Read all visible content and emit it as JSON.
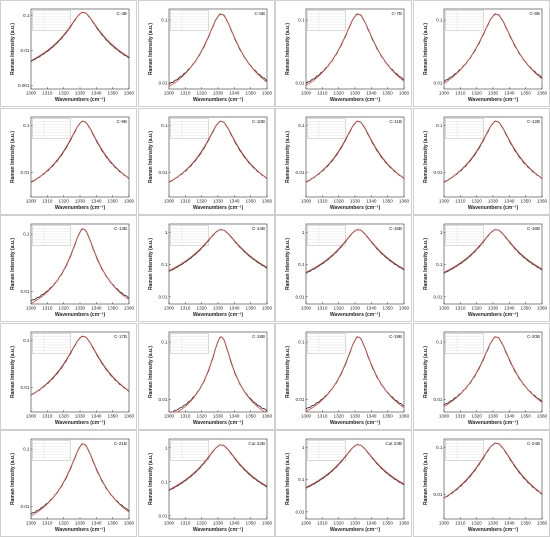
{
  "colors": {
    "measured": "#222222",
    "fit": "#e8463c",
    "axis": "#333333",
    "frame": "#cfcfcf"
  },
  "chart_data": [
    {
      "type": "line",
      "title": "C-4B",
      "xlabel": "Wavenumbers (cm⁻¹)",
      "ylabel": "Raman Intensity (a.u.)",
      "xlim": [
        1300,
        1360
      ],
      "x_ticks": [
        1300,
        1310,
        1320,
        1330,
        1340,
        1350,
        1360
      ],
      "yscale": "log",
      "ylim": [
        0.0008,
        0.15
      ],
      "y_ticks": [
        0.001,
        0.01,
        0.1
      ],
      "y_tick_labels": [
        "0.001",
        "0.01",
        "0.1"
      ],
      "peak": {
        "center": 1332,
        "hwhm": 6.5,
        "height": 0.12
      },
      "series": [
        {
          "values": "measured spectrum"
        },
        {
          "values": "Lorentzian fit"
        }
      ]
    },
    {
      "type": "line",
      "title": "C-5B",
      "xlabel": "Wavenumbers (cm⁻¹)",
      "ylabel": "Raman Intensity (a.u.)",
      "xlim": [
        1300,
        1360
      ],
      "x_ticks": [
        1300,
        1310,
        1320,
        1330,
        1340,
        1350,
        1360
      ],
      "yscale": "log",
      "ylim": [
        0.008,
        0.15
      ],
      "y_ticks": [
        0.01,
        0.1
      ],
      "y_tick_labels": [
        "0.01",
        "0.1"
      ],
      "peak": {
        "center": 1332,
        "hwhm": 6.8,
        "height": 0.12
      }
    },
    {
      "type": "line",
      "title": "C-7B",
      "xlabel": "Wavenumbers (cm⁻¹)",
      "ylabel": "Raman Intensity (a.u.)",
      "xlim": [
        1300,
        1360
      ],
      "x_ticks": [
        1300,
        1310,
        1320,
        1330,
        1340,
        1350,
        1360
      ],
      "yscale": "log",
      "ylim": [
        0.008,
        0.15
      ],
      "y_ticks": [
        0.01,
        0.1
      ],
      "y_tick_labels": [
        "0.01",
        "0.1"
      ],
      "peak": {
        "center": 1332,
        "hwhm": 7,
        "height": 0.12
      }
    },
    {
      "type": "line",
      "title": "C-8B",
      "xlabel": "Wavenumbers (cm⁻¹)",
      "ylabel": "Raman Intensity (a.u.)",
      "xlim": [
        1300,
        1360
      ],
      "x_ticks": [
        1300,
        1310,
        1320,
        1330,
        1340,
        1350,
        1360
      ],
      "yscale": "log",
      "ylim": [
        0.008,
        0.15
      ],
      "y_ticks": [
        0.01,
        0.1
      ],
      "y_tick_labels": [
        "0.01",
        "0.1"
      ],
      "peak": {
        "center": 1332,
        "hwhm": 7.5,
        "height": 0.12
      }
    },
    {
      "type": "line",
      "title": "C-9B",
      "xlabel": "Wavenumbers (cm⁻¹)",
      "ylabel": "Raman Intensity (a.u.)",
      "xlim": [
        1300,
        1360
      ],
      "x_ticks": [
        1300,
        1310,
        1320,
        1330,
        1340,
        1350,
        1360
      ],
      "yscale": "log",
      "ylim": [
        0.003,
        0.15
      ],
      "y_ticks": [
        0.01,
        0.1
      ],
      "y_tick_labels": [
        "0.01",
        "0.1"
      ],
      "peak": {
        "center": 1332,
        "hwhm": 6.5,
        "height": 0.12
      }
    },
    {
      "type": "line",
      "title": "C-10B",
      "xlabel": "Wavenumbers (cm⁻¹)",
      "ylabel": "Raman Intensity (a.u.)",
      "xlim": [
        1300,
        1360
      ],
      "x_ticks": [
        1300,
        1310,
        1320,
        1330,
        1340,
        1350,
        1360
      ],
      "yscale": "log",
      "ylim": [
        0.003,
        0.15
      ],
      "y_ticks": [
        0.01,
        0.1
      ],
      "y_tick_labels": [
        "0.01",
        "0.1"
      ],
      "peak": {
        "center": 1332,
        "hwhm": 6.5,
        "height": 0.12
      }
    },
    {
      "type": "line",
      "title": "C-11B",
      "xlabel": "Wavenumbers (cm⁻¹)",
      "ylabel": "Raman Intensity (a.u.)",
      "xlim": [
        1300,
        1360
      ],
      "x_ticks": [
        1300,
        1310,
        1320,
        1330,
        1340,
        1350,
        1360
      ],
      "yscale": "log",
      "ylim": [
        0.003,
        0.15
      ],
      "y_ticks": [
        0.01,
        0.1
      ],
      "y_tick_labels": [
        "0.01",
        "0.1"
      ],
      "peak": {
        "center": 1332,
        "hwhm": 6.5,
        "height": 0.12
      }
    },
    {
      "type": "line",
      "title": "C-12B",
      "xlabel": "Wavenumbers (cm⁻¹)",
      "ylabel": "Raman Intensity (a.u.)",
      "xlim": [
        1300,
        1360
      ],
      "x_ticks": [
        1300,
        1310,
        1320,
        1330,
        1340,
        1350,
        1360
      ],
      "yscale": "log",
      "ylim": [
        0.003,
        0.15
      ],
      "y_ticks": [
        0.01,
        0.1
      ],
      "y_tick_labels": [
        "0.01",
        "0.1"
      ],
      "peak": {
        "center": 1332,
        "hwhm": 6.5,
        "height": 0.12
      }
    },
    {
      "type": "line",
      "title": "C-13B",
      "xlabel": "Wavenumbers (cm⁻¹)",
      "ylabel": "Raman Intensity (a.u.)",
      "xlim": [
        1300,
        1360
      ],
      "x_ticks": [
        1300,
        1310,
        1320,
        1330,
        1340,
        1350,
        1360
      ],
      "yscale": "log",
      "ylim": [
        0.006,
        0.15
      ],
      "y_ticks": [
        0.01,
        0.1
      ],
      "y_tick_labels": [
        "0.01",
        "0.1"
      ],
      "peak": {
        "center": 1332,
        "hwhm": 5.5,
        "height": 0.12
      }
    },
    {
      "type": "line",
      "title": "C-14B",
      "xlabel": "Wavenumbers (cm⁻¹)",
      "ylabel": "Raman Intensity (a.u.)",
      "xlim": [
        1300,
        1360
      ],
      "x_ticks": [
        1300,
        1310,
        1320,
        1330,
        1340,
        1350,
        1360
      ],
      "yscale": "log",
      "ylim": [
        0.006,
        1.8
      ],
      "y_ticks": [
        0.01,
        0.1,
        1
      ],
      "y_tick_labels": [
        "0.01",
        "0.1",
        "1"
      ],
      "peak": {
        "center": 1332,
        "hwhm": 7.5,
        "height": 1.2
      }
    },
    {
      "type": "line",
      "title": "C-15B",
      "xlabel": "Wavenumbers (cm⁻¹)",
      "ylabel": "Raman Intensity (a.u.)",
      "xlim": [
        1300,
        1360
      ],
      "x_ticks": [
        1300,
        1310,
        1320,
        1330,
        1340,
        1350,
        1360
      ],
      "yscale": "log",
      "ylim": [
        0.006,
        1.8
      ],
      "y_ticks": [
        0.01,
        0.1,
        1
      ],
      "y_tick_labels": [
        "0.01",
        "0.1",
        "1"
      ],
      "peak": {
        "center": 1332,
        "hwhm": 7,
        "height": 1.2
      }
    },
    {
      "type": "line",
      "title": "C-16B",
      "xlabel": "Wavenumbers (cm⁻¹)",
      "ylabel": "Raman Intensity (a.u.)",
      "xlim": [
        1300,
        1360
      ],
      "x_ticks": [
        1300,
        1310,
        1320,
        1330,
        1340,
        1350,
        1360
      ],
      "yscale": "log",
      "ylim": [
        0.006,
        1.8
      ],
      "y_ticks": [
        0.01,
        0.1,
        1
      ],
      "y_tick_labels": [
        "0.01",
        "0.1",
        "1"
      ],
      "peak": {
        "center": 1332,
        "hwhm": 7,
        "height": 1.2
      }
    },
    {
      "type": "line",
      "title": "C-17B",
      "xlabel": "Wavenumbers (cm⁻¹)",
      "ylabel": "Raman Intensity (a.u.)",
      "xlim": [
        1300,
        1360
      ],
      "x_ticks": [
        1300,
        1310,
        1320,
        1330,
        1340,
        1350,
        1360
      ],
      "yscale": "log",
      "ylim": [
        0.003,
        0.15
      ],
      "y_ticks": [
        0.01,
        0.1
      ],
      "y_tick_labels": [
        "0.01",
        "0.1"
      ],
      "peak": {
        "center": 1332,
        "hwhm": 7,
        "height": 0.12
      }
    },
    {
      "type": "line",
      "title": "C-18B",
      "xlabel": "Wavenumbers (cm⁻¹)",
      "ylabel": "Raman Intensity (a.u.)",
      "xlim": [
        1300,
        1360
      ],
      "x_ticks": [
        1300,
        1310,
        1320,
        1330,
        1340,
        1350,
        1360
      ],
      "yscale": "log",
      "ylim": [
        0.006,
        0.15
      ],
      "y_ticks": [
        0.01,
        0.1
      ],
      "y_tick_labels": [
        "0.01",
        "0.1"
      ],
      "peak": {
        "center": 1332,
        "hwhm": 4.5,
        "height": 0.12
      }
    },
    {
      "type": "line",
      "title": "C-19B",
      "xlabel": "Wavenumbers (cm⁻¹)",
      "ylabel": "Raman Intensity (a.u.)",
      "xlim": [
        1300,
        1360
      ],
      "x_ticks": [
        1300,
        1310,
        1320,
        1330,
        1340,
        1350,
        1360
      ],
      "yscale": "log",
      "ylim": [
        0.006,
        0.15
      ],
      "y_ticks": [
        0.01,
        0.1
      ],
      "y_tick_labels": [
        "0.01",
        "0.1"
      ],
      "peak": {
        "center": 1332,
        "hwhm": 5.5,
        "height": 0.12
      }
    },
    {
      "type": "line",
      "title": "C-20B",
      "xlabel": "Wavenumbers (cm⁻¹)",
      "ylabel": "Raman Intensity (a.u.)",
      "xlim": [
        1300,
        1360
      ],
      "x_ticks": [
        1300,
        1310,
        1320,
        1330,
        1340,
        1350,
        1360
      ],
      "yscale": "log",
      "ylim": [
        0.006,
        0.15
      ],
      "y_ticks": [
        0.01,
        0.1
      ],
      "y_tick_labels": [
        "0.01",
        "0.1"
      ],
      "peak": {
        "center": 1332,
        "hwhm": 6.5,
        "height": 0.12
      }
    },
    {
      "type": "line",
      "title": "C-21B",
      "xlabel": "Wavenumbers (cm⁻¹)",
      "ylabel": "Raman Intensity (a.u.)",
      "xlim": [
        1300,
        1360
      ],
      "x_ticks": [
        1300,
        1310,
        1320,
        1330,
        1340,
        1350,
        1360
      ],
      "yscale": "log",
      "ylim": [
        0.006,
        0.15
      ],
      "y_ticks": [
        0.01,
        0.1
      ],
      "y_tick_labels": [
        "0.01",
        "0.1"
      ],
      "peak": {
        "center": 1332,
        "hwhm": 6,
        "height": 0.12
      }
    },
    {
      "type": "line",
      "title": "Cut 22B",
      "xlabel": "Wavenumbers (cm⁻¹)",
      "ylabel": "Raman Intensity (a.u.)",
      "xlim": [
        1300,
        1360
      ],
      "x_ticks": [
        1300,
        1310,
        1320,
        1330,
        1340,
        1350,
        1360
      ],
      "yscale": "log",
      "ylim": [
        0.008,
        1.8
      ],
      "y_ticks": [
        0.01,
        0.1,
        1
      ],
      "y_tick_labels": [
        "0.01",
        "0.1",
        "1"
      ],
      "peak": {
        "center": 1332,
        "hwhm": 7,
        "height": 1.2
      }
    },
    {
      "type": "line",
      "title": "Cut 23B",
      "xlabel": "Wavenumbers (cm⁻¹)",
      "ylabel": "Raman Intensity (a.u.)",
      "xlim": [
        1300,
        1360
      ],
      "x_ticks": [
        1300,
        1310,
        1320,
        1330,
        1340,
        1350,
        1360
      ],
      "yscale": "log",
      "ylim": [
        0.006,
        1.8
      ],
      "y_ticks": [
        0.01,
        0.1,
        1
      ],
      "y_tick_labels": [
        "0.01",
        "0.1",
        "1"
      ],
      "peak": {
        "center": 1332,
        "hwhm": 7,
        "height": 1.2
      }
    },
    {
      "type": "line",
      "title": "C-24B",
      "xlabel": "Wavenumbers (cm⁻¹)",
      "ylabel": "Raman Intensity (a.u.)",
      "xlim": [
        1300,
        1360
      ],
      "x_ticks": [
        1300,
        1310,
        1320,
        1330,
        1340,
        1350,
        1360
      ],
      "yscale": "log",
      "ylim": [
        0.003,
        0.15
      ],
      "y_ticks": [
        0.01,
        0.1
      ],
      "y_tick_labels": [
        "0.01",
        "0.1"
      ],
      "peak": {
        "center": 1332,
        "hwhm": 8,
        "height": 0.12
      }
    }
  ]
}
